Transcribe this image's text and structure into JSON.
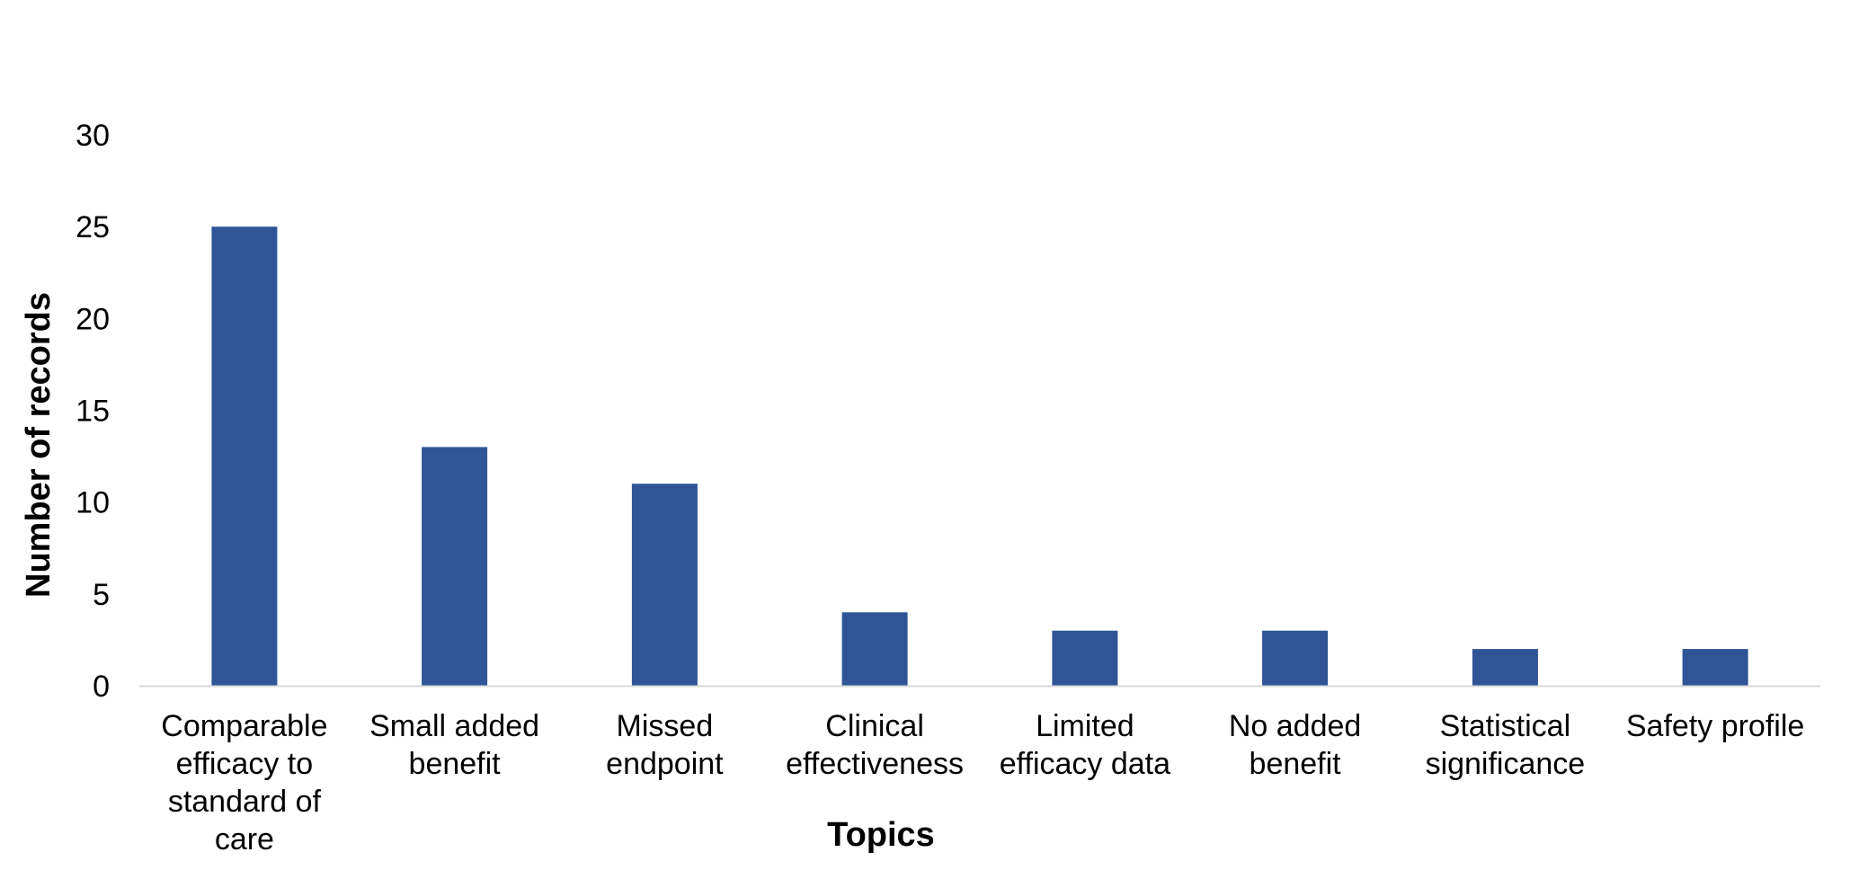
{
  "chart_data": {
    "type": "bar",
    "categories": [
      "Comparable efficacy to standard of care",
      "Small added benefit",
      "Missed endpoint",
      "Clinical effectiveness",
      "Limited efficacy data",
      "No added benefit",
      "Statistical significance",
      "Safety profile"
    ],
    "category_label_lines": [
      [
        "Comparable",
        "efficacy to",
        "standard of",
        "care"
      ],
      [
        "Small added",
        "benefit"
      ],
      [
        "Missed",
        "endpoint"
      ],
      [
        "Clinical",
        "effectiveness"
      ],
      [
        "Limited",
        "efficacy data"
      ],
      [
        "No added",
        "benefit"
      ],
      [
        "Statistical",
        "significance"
      ],
      [
        "Safety profile"
      ]
    ],
    "values": [
      25,
      13,
      11,
      4,
      3,
      3,
      2,
      2
    ],
    "title": "",
    "xlabel": "Topics",
    "ylabel": "Number of records",
    "ylim": [
      0,
      30
    ],
    "yticks": [
      0,
      5,
      10,
      15,
      20,
      25,
      30
    ],
    "grid": false,
    "legend": "none",
    "bar_color": "#2F5597",
    "axis_color": "#D9D9D9"
  }
}
